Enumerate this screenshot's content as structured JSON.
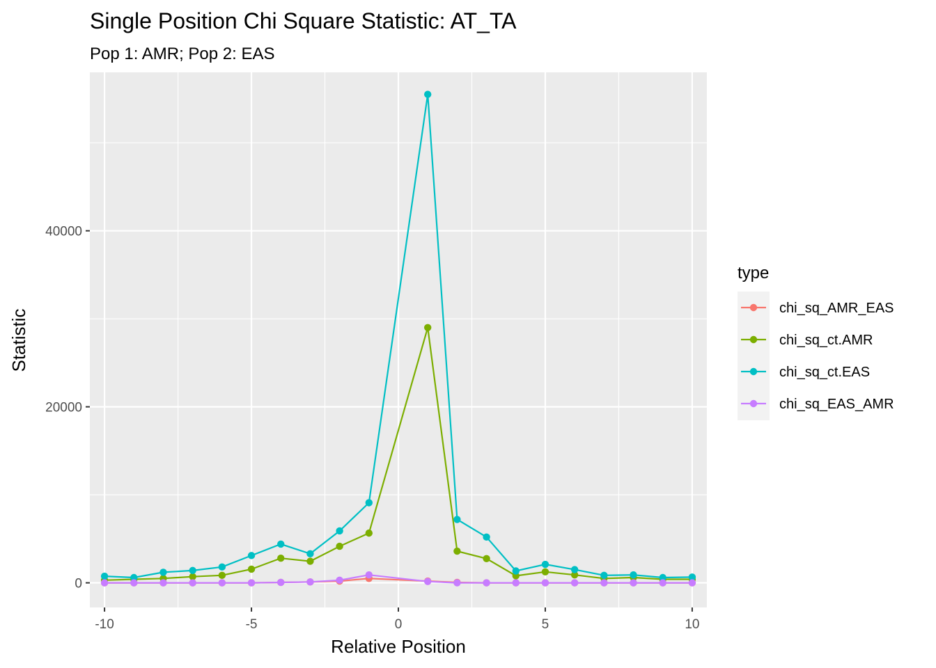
{
  "chart_data": {
    "type": "line",
    "title": "Single Position Chi Square Statistic: AT_TA",
    "subtitle": "Pop 1: AMR; Pop 2: EAS",
    "xlabel": "Relative Position",
    "ylabel": "Statistic",
    "xlim": [
      -10.5,
      10.5
    ],
    "ylim": [
      -2800,
      58000
    ],
    "x_ticks": [
      -10,
      -5,
      0,
      5,
      10
    ],
    "x_tick_labels": [
      "-10",
      "-5",
      "0",
      "5",
      "10"
    ],
    "y_ticks": [
      0,
      20000,
      40000
    ],
    "y_tick_labels": [
      "0",
      "20000",
      "40000"
    ],
    "grid": true,
    "legend_position": "right",
    "legend_title": "type",
    "x": [
      -10,
      -9,
      -8,
      -7,
      -6,
      -5,
      -4,
      -3,
      -2,
      -1,
      1,
      2,
      3,
      4,
      5,
      6,
      7,
      8,
      9,
      10
    ],
    "series": [
      {
        "name": "chi_sq_AMR_EAS",
        "color": "#F8766D",
        "values": [
          0,
          0,
          0,
          0,
          0,
          0,
          50,
          100,
          200,
          500,
          200,
          50,
          0,
          0,
          0,
          0,
          0,
          0,
          0,
          0
        ]
      },
      {
        "name": "chi_sq_ct.AMR",
        "color": "#7CAE00",
        "values": [
          300,
          400,
          500,
          700,
          850,
          1550,
          2800,
          2450,
          4150,
          5650,
          29000,
          3600,
          2750,
          800,
          1250,
          900,
          500,
          600,
          400,
          400
        ]
      },
      {
        "name": "chi_sq_ct.EAS",
        "color": "#00BFC4",
        "values": [
          750,
          600,
          1200,
          1400,
          1800,
          3100,
          4400,
          3300,
          5900,
          9100,
          55500,
          7200,
          5200,
          1350,
          2100,
          1500,
          850,
          900,
          600,
          650
        ]
      },
      {
        "name": "chi_sq_EAS_AMR",
        "color": "#C77CFF",
        "values": [
          0,
          0,
          0,
          0,
          0,
          0,
          50,
          100,
          300,
          900,
          150,
          0,
          0,
          0,
          0,
          0,
          0,
          0,
          0,
          0
        ]
      }
    ]
  }
}
